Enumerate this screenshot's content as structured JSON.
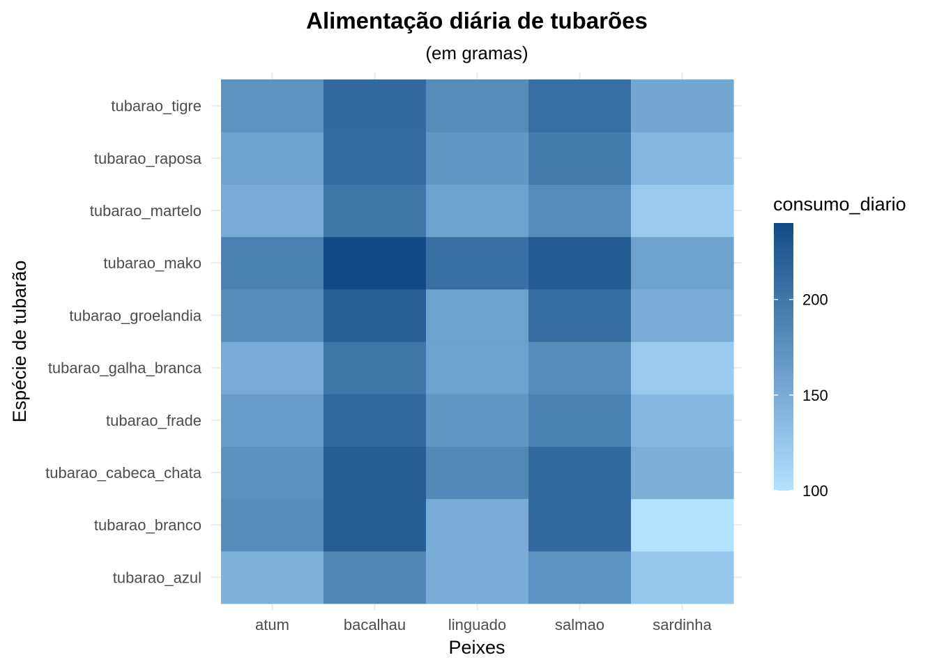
{
  "chart_data": {
    "type": "heatmap",
    "title": "Alimentação diária de tubarões",
    "subtitle": "(em gramas)",
    "xlabel": "Peixes",
    "ylabel": "Espécie de tubarão",
    "x_categories": [
      "atum",
      "bacalhau",
      "linguado",
      "salmao",
      "sardinha"
    ],
    "y_categories": [
      "tubarao_azul",
      "tubarao_branco",
      "tubarao_cabeca_chata",
      "tubarao_frade",
      "tubarao_galha_branca",
      "tubarao_groelandia",
      "tubarao_mako",
      "tubarao_martelo",
      "tubarao_raposa",
      "tubarao_tigre"
    ],
    "values": [
      [
        145,
        185,
        150,
        175,
        125
      ],
      [
        180,
        222,
        150,
        212,
        100
      ],
      [
        176,
        222,
        182,
        212,
        148
      ],
      [
        164,
        212,
        170,
        190,
        140
      ],
      [
        150,
        200,
        160,
        180,
        122
      ],
      [
        180,
        220,
        160,
        208,
        150
      ],
      [
        190,
        240,
        206,
        225,
        160
      ],
      [
        150,
        200,
        160,
        180,
        122
      ],
      [
        160,
        210,
        170,
        196,
        140
      ],
      [
        175,
        212,
        180,
        207,
        155
      ]
    ],
    "legend": {
      "title": "consumo_diario",
      "min": 100,
      "max": 240,
      "breaks": [
        100,
        150,
        200
      ],
      "low_color": "#b3e1ff",
      "high_color": "#124b87",
      "position": "right"
    },
    "grid": true
  }
}
